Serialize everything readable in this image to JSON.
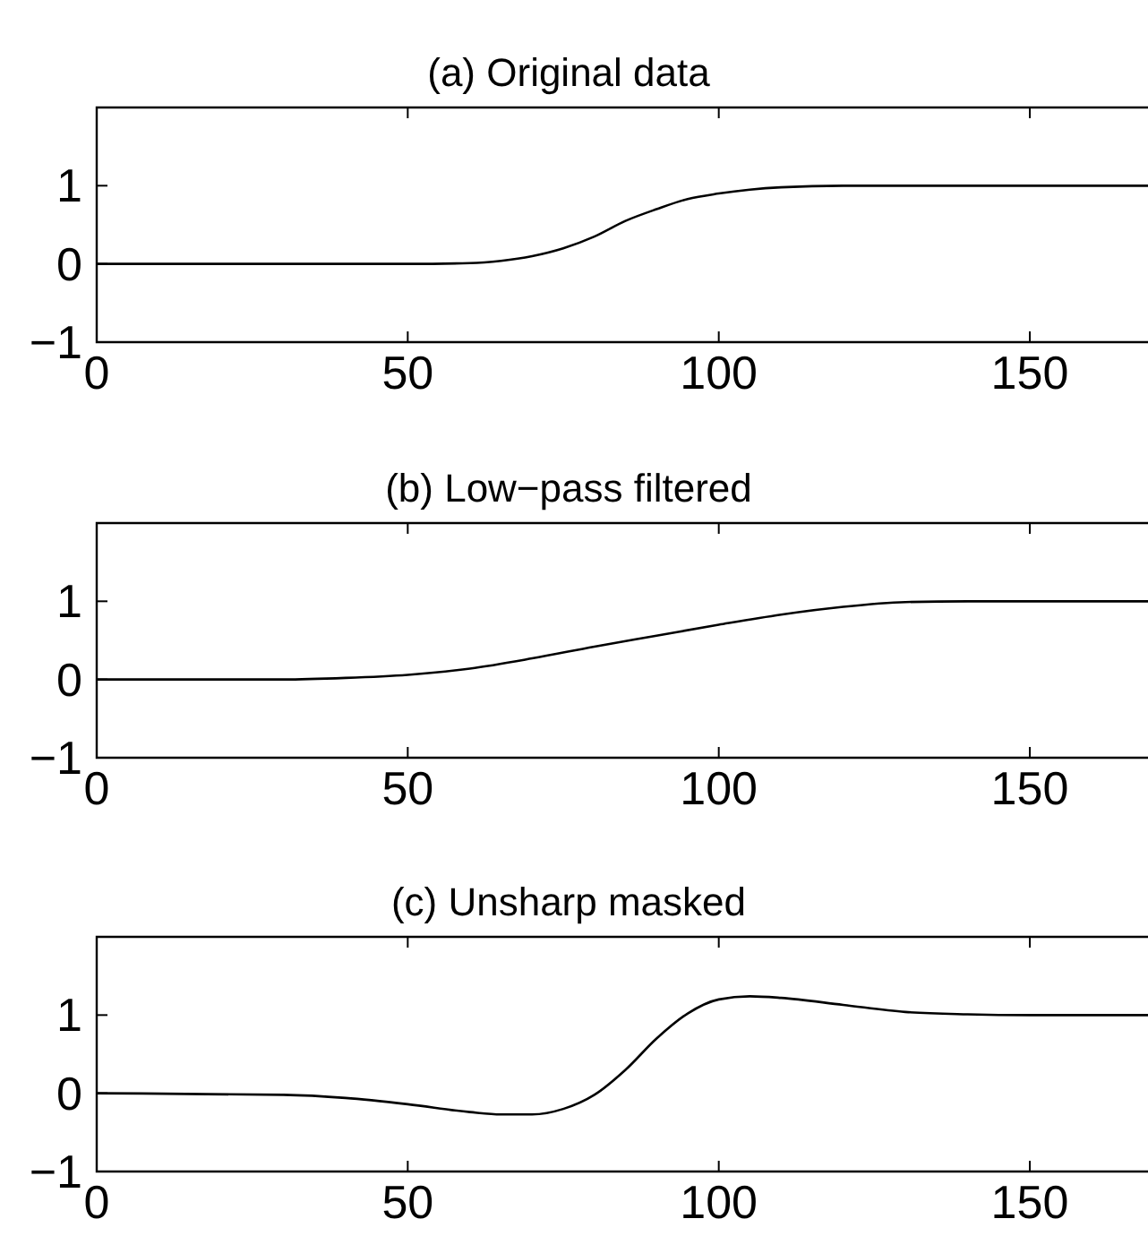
{
  "chart_data": [
    {
      "type": "line",
      "title": "(a) Original data",
      "xlim": [
        0,
        169
      ],
      "ylim": [
        -1,
        2
      ],
      "xticks": [
        0,
        50,
        100,
        150
      ],
      "yticks": [
        -1,
        0,
        1
      ],
      "grid": false,
      "marker": "none",
      "line_style": "solid",
      "series": [
        {
          "color": "#000000",
          "x": [
            0,
            50,
            60,
            65,
            70,
            75,
            80,
            85,
            90,
            95,
            100,
            105,
            110,
            120,
            169
          ],
          "values": [
            0,
            0,
            0.01,
            0.04,
            0.1,
            0.2,
            0.35,
            0.55,
            0.7,
            0.83,
            0.9,
            0.95,
            0.98,
            1,
            1
          ]
        }
      ]
    },
    {
      "type": "line",
      "title": "(b) Low−pass filtered",
      "xlim": [
        0,
        169
      ],
      "ylim": [
        -1,
        2
      ],
      "xticks": [
        0,
        50,
        100,
        150
      ],
      "yticks": [
        -1,
        0,
        1
      ],
      "grid": false,
      "marker": "none",
      "line_style": "solid",
      "series": [
        {
          "color": "#000000",
          "x": [
            0,
            30,
            40,
            50,
            60,
            70,
            80,
            90,
            100,
            110,
            120,
            130,
            140,
            169
          ],
          "values": [
            0,
            0,
            0.02,
            0.06,
            0.14,
            0.27,
            0.42,
            0.56,
            0.7,
            0.83,
            0.93,
            0.99,
            1,
            1
          ]
        }
      ]
    },
    {
      "type": "line",
      "title": "(c) Unsharp masked",
      "xlim": [
        0,
        169
      ],
      "ylim": [
        -1,
        2
      ],
      "xticks": [
        0,
        50,
        100,
        150
      ],
      "yticks": [
        -1,
        0,
        1
      ],
      "grid": false,
      "marker": "none",
      "line_style": "solid",
      "series": [
        {
          "color": "#000000",
          "x": [
            0,
            30,
            40,
            50,
            60,
            65,
            70,
            75,
            80,
            85,
            90,
            95,
            100,
            105,
            110,
            120,
            130,
            140,
            150,
            169
          ],
          "values": [
            0,
            -0.02,
            -0.06,
            -0.14,
            -0.24,
            -0.27,
            -0.27,
            -0.2,
            -0.02,
            0.3,
            0.7,
            1.02,
            1.2,
            1.24,
            1.22,
            1.13,
            1.04,
            1.01,
            1,
            1
          ]
        }
      ]
    }
  ]
}
